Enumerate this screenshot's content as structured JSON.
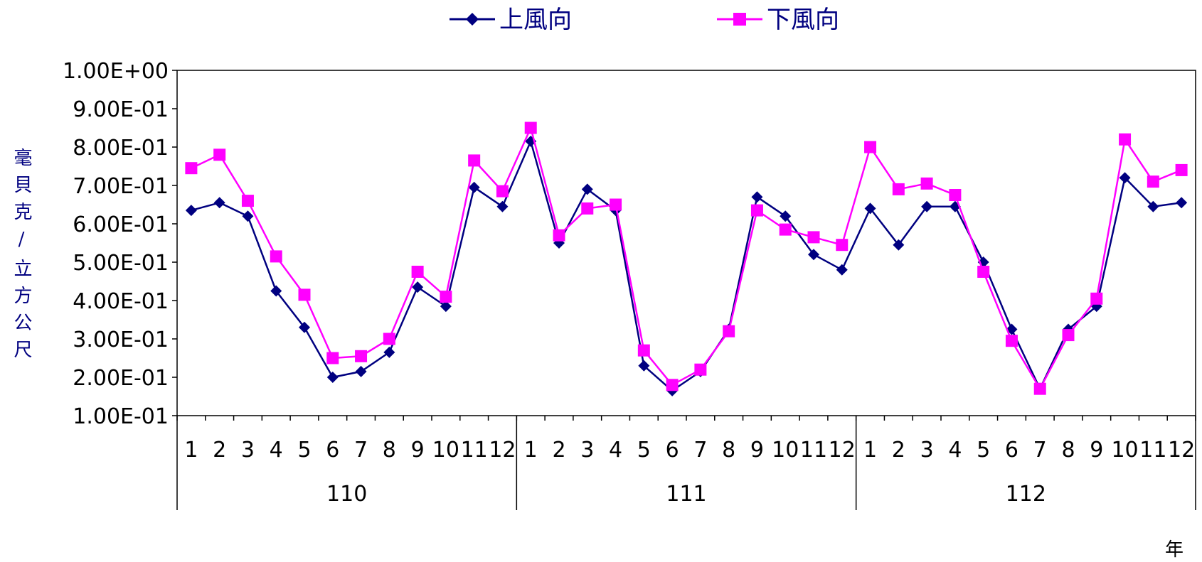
{
  "chart_data": {
    "type": "line",
    "ylabel": "毫貝克/立方公尺",
    "xlabel": "年",
    "ylim": [
      0.1,
      1.0
    ],
    "yticks": [
      "1.00E-01",
      "2.00E-01",
      "3.00E-01",
      "4.00E-01",
      "5.00E-01",
      "6.00E-01",
      "7.00E-01",
      "8.00E-01",
      "9.00E-01",
      "1.00E+00"
    ],
    "legend_position": "top",
    "grid": false,
    "years": [
      {
        "label": "110",
        "months": 12
      },
      {
        "label": "111",
        "months": 12
      },
      {
        "label": "112",
        "months": 12
      }
    ],
    "months": [
      "1",
      "2",
      "3",
      "4",
      "5",
      "6",
      "7",
      "8",
      "9",
      "10",
      "11",
      "12",
      "1",
      "2",
      "3",
      "4",
      "5",
      "6",
      "7",
      "8",
      "9",
      "10",
      "11",
      "12",
      "1",
      "2",
      "3",
      "4",
      "5",
      "6",
      "7",
      "8",
      "9",
      "10",
      "11",
      "12"
    ],
    "series": [
      {
        "name": "上風向",
        "color": "#000080",
        "marker": "diamond",
        "values": [
          0.635,
          0.655,
          0.62,
          0.425,
          0.33,
          0.2,
          0.215,
          0.265,
          0.435,
          0.385,
          0.695,
          0.645,
          0.815,
          0.55,
          0.69,
          0.635,
          0.23,
          0.165,
          0.215,
          0.325,
          0.67,
          0.62,
          0.52,
          0.48,
          0.64,
          0.545,
          0.645,
          0.645,
          0.5,
          0.325,
          0.17,
          0.325,
          0.385,
          0.72,
          0.645,
          0.655
        ]
      },
      {
        "name": "下風向",
        "color": "#ff00ff",
        "marker": "square",
        "values": [
          0.745,
          0.78,
          0.66,
          0.515,
          0.415,
          0.25,
          0.255,
          0.3,
          0.475,
          0.41,
          0.765,
          0.685,
          0.85,
          0.57,
          0.64,
          0.65,
          0.27,
          0.18,
          0.22,
          0.32,
          0.635,
          0.585,
          0.565,
          0.545,
          0.8,
          0.69,
          0.705,
          0.675,
          0.475,
          0.295,
          0.17,
          0.31,
          0.405,
          0.82,
          0.71,
          0.74
        ]
      }
    ]
  }
}
